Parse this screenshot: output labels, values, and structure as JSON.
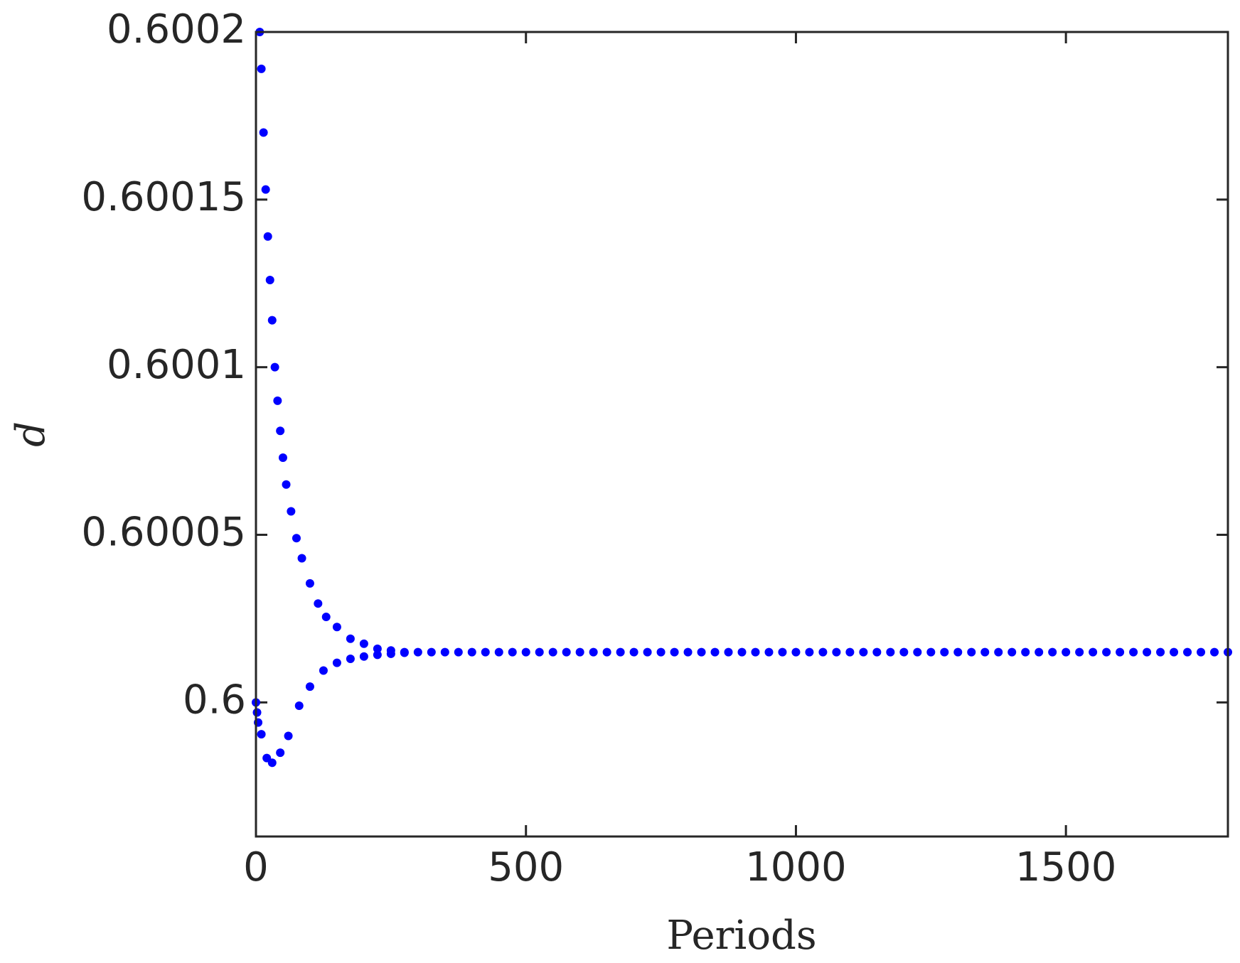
{
  "chart_data": {
    "type": "scatter",
    "x_label": "Periods",
    "y_label": "d",
    "color": "#0000ff",
    "x": [
      7,
      10,
      14,
      18,
      22,
      26,
      30,
      35,
      40,
      45,
      50,
      56,
      65,
      75,
      85,
      100,
      115,
      130,
      150,
      175,
      200,
      225,
      250,
      275,
      0,
      2,
      4,
      10,
      20,
      30,
      45,
      60,
      80,
      100,
      125,
      150,
      175,
      200,
      225,
      250,
      275,
      300,
      325,
      350,
      375,
      400,
      425,
      450,
      475,
      500,
      525,
      550,
      575,
      600,
      625,
      650,
      675,
      700,
      725,
      750,
      775,
      800,
      825,
      850,
      875,
      900,
      925,
      950,
      975,
      1000,
      1025,
      1050,
      1075,
      1100,
      1125,
      1150,
      1175,
      1200,
      1225,
      1250,
      1275,
      1300,
      1325,
      1350,
      1375,
      1400,
      1425,
      1450,
      1475,
      1500,
      1525,
      1550,
      1575,
      1600,
      1625,
      1650,
      1675,
      1700,
      1725,
      1750,
      1775,
      1800
    ],
    "values": [
      0.6002,
      0.600189,
      0.60017,
      0.600153,
      0.600139,
      0.600126,
      0.600114,
      0.6001,
      0.60009,
      0.600081,
      0.600073,
      0.600065,
      0.600057,
      0.600049,
      0.600043,
      0.6000355,
      0.6000295,
      0.6000255,
      0.6000225,
      0.600019,
      0.6000175,
      0.600016,
      0.6000155,
      0.600015,
      0.6,
      0.599997,
      0.599994,
      0.5999905,
      0.5999834,
      0.599982,
      0.599985,
      0.59999,
      0.599999,
      0.6000047,
      0.6000095,
      0.6000118,
      0.600013,
      0.6000137,
      0.6000142,
      0.6000145,
      0.6000148,
      0.600015,
      0.600015,
      0.600015,
      0.600015,
      0.600015,
      0.600015,
      0.600015,
      0.600015,
      0.600015,
      0.600015,
      0.600015,
      0.600015,
      0.600015,
      0.600015,
      0.600015,
      0.600015,
      0.600015,
      0.600015,
      0.600015,
      0.600015,
      0.600015,
      0.600015,
      0.600015,
      0.600015,
      0.600015,
      0.600015,
      0.600015,
      0.600015,
      0.600015,
      0.600015,
      0.600015,
      0.600015,
      0.600015,
      0.600015,
      0.600015,
      0.600015,
      0.600015,
      0.600015,
      0.600015,
      0.600015,
      0.600015,
      0.600015,
      0.600015,
      0.600015,
      0.600015,
      0.600015,
      0.600015,
      0.600015,
      0.600015,
      0.600015,
      0.600015,
      0.600015,
      0.600015,
      0.600015,
      0.600015,
      0.600015,
      0.600015,
      0.600015,
      0.600015,
      0.600015,
      0.600015
    ],
    "xlim": [
      0,
      1800
    ],
    "xticks": [
      0,
      500,
      1000,
      1500
    ],
    "ylim": [
      0.59996,
      0.6002
    ],
    "yticks": [
      0.6,
      0.60005,
      0.6001,
      0.60015,
      0.6002
    ]
  }
}
